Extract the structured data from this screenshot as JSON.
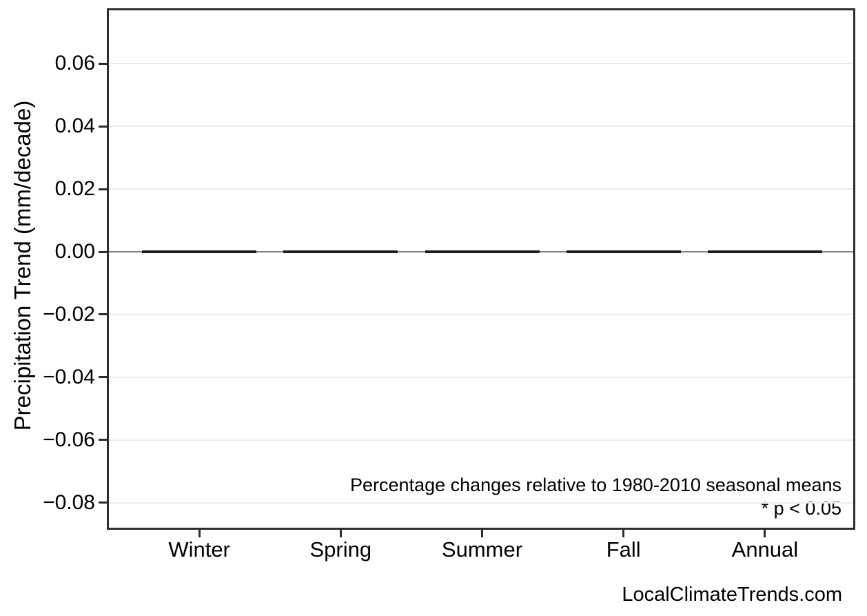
{
  "page": {
    "background": "#ffffff"
  },
  "footer": {
    "watermark": "LocalClimateTrends.com"
  },
  "chart_data": {
    "type": "bar",
    "title": "",
    "categories": [
      "Winter",
      "Spring",
      "Summer",
      "Fall",
      "Annual"
    ],
    "values": [
      0.0,
      0.0,
      0.0,
      0.0,
      0.0
    ],
    "xlabel": "",
    "ylabel": "Precipitation Trend (mm/decade)",
    "ylim": [
      -0.088,
      0.077
    ],
    "yticks": [
      0.06,
      0.04,
      0.02,
      0.0,
      -0.02,
      -0.04,
      -0.06,
      -0.08
    ],
    "ytick_labels": [
      "0.06",
      "0.04",
      "0.02",
      "0.00",
      "−0.02",
      "−0.04",
      "−0.06",
      "−0.08"
    ],
    "grid": "horizontal-major-only",
    "zero_line": true,
    "legend_position": "none",
    "annotations": [
      "Percentage changes relative to 1980-2010 seasonal means",
      "* p < 0.05"
    ],
    "colors": {
      "panel_border": "#2d2d2d",
      "bar": "#1d1d1d",
      "zero_line": "#7f7f7f",
      "gridline": "#ececec",
      "text": "#000000"
    }
  }
}
